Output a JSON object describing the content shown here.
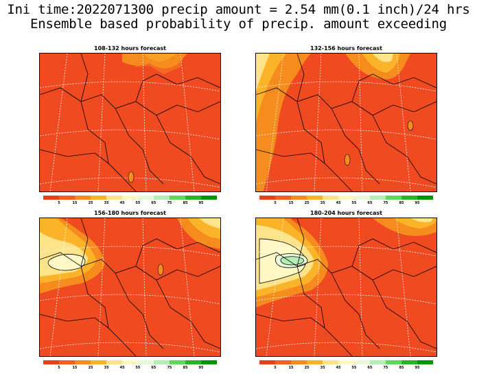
{
  "title_line1": "Ini time:2022071300 precip amount = 2.54 mm(0.1 inch)/24 hrs",
  "title_line2": "Ensemble based probability of precip. amount exceeding",
  "panels": [
    {
      "title": "108-132 hours forecast"
    },
    {
      "title": "132-156 hours forecast"
    },
    {
      "title": "156-180 hours forecast"
    },
    {
      "title": "180-204 hours forecast"
    }
  ],
  "colorbar": {
    "labels": [
      "5",
      "15",
      "25",
      "35",
      "45",
      "55",
      "65",
      "75",
      "85",
      "95"
    ],
    "colors": [
      "#e8401c",
      "#f0601e",
      "#f68c1e",
      "#fbb42a",
      "#fde48a",
      "#fff8c4",
      "#e8f8d8",
      "#b4eeb4",
      "#60d860",
      "#28b428",
      "#009600"
    ]
  },
  "colors": {
    "base_probability": "#f04a20",
    "contour_lines": "#000000",
    "graticule": "#ffffff"
  }
}
